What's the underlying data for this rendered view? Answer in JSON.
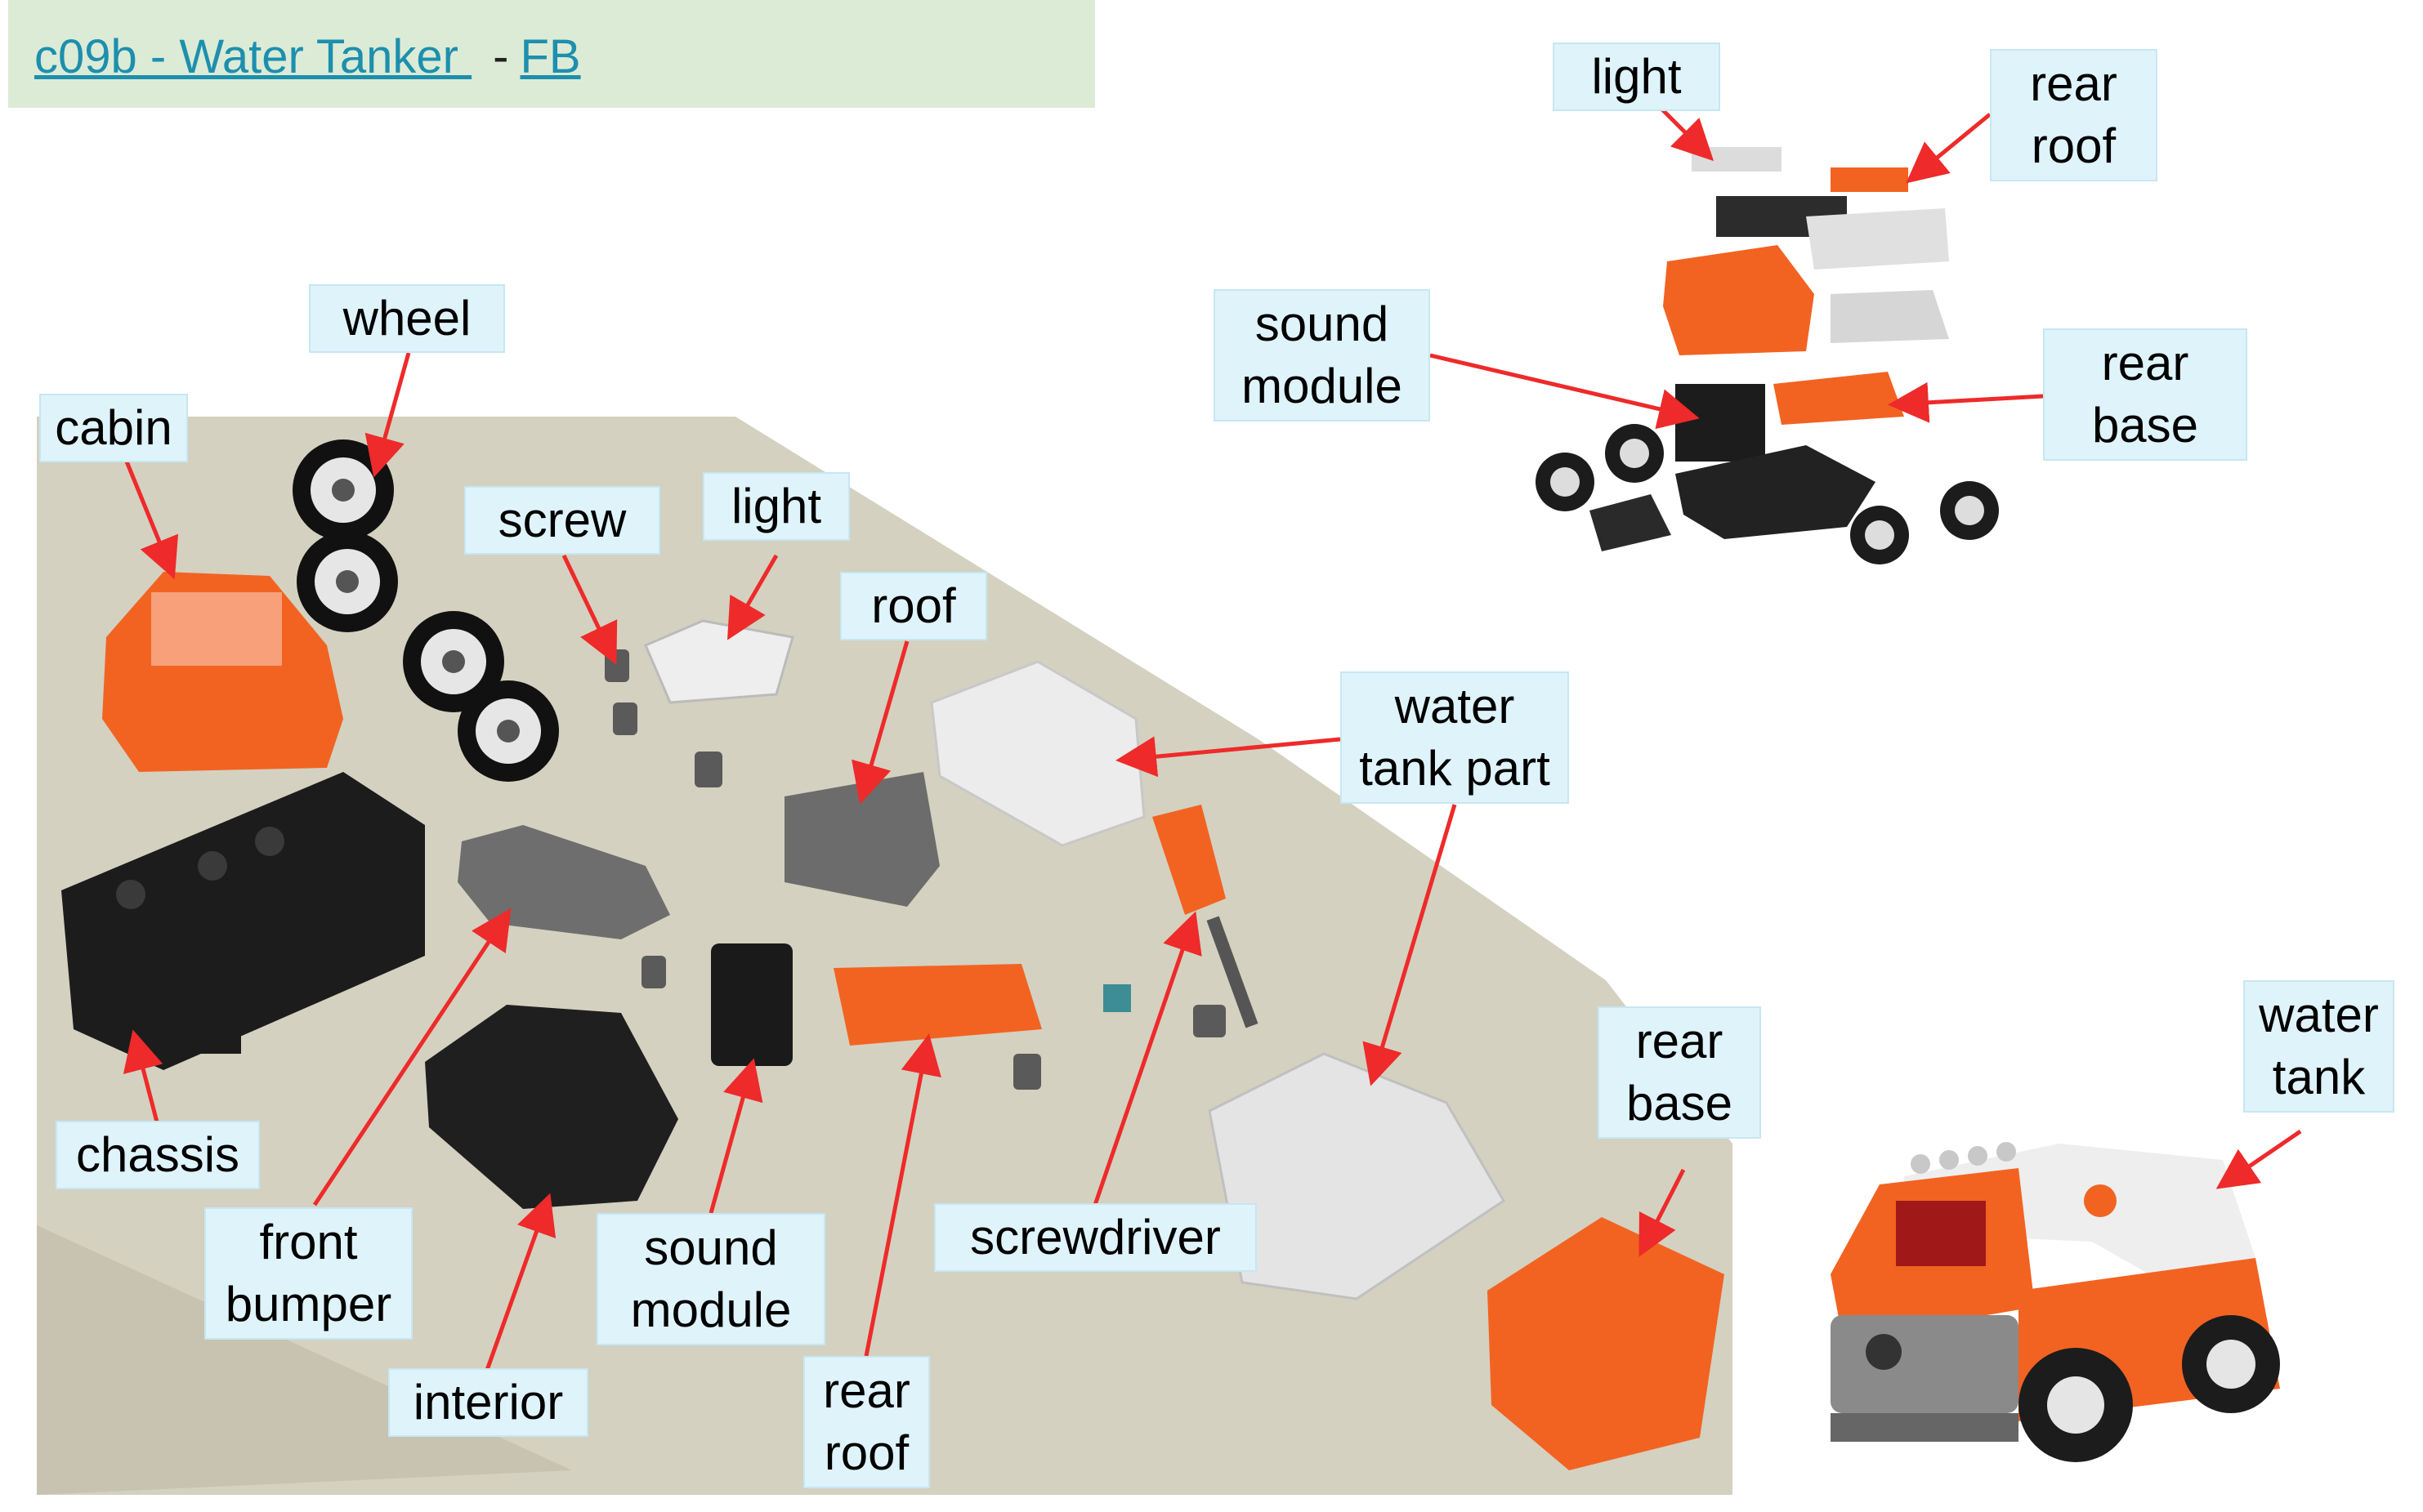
{
  "header": {
    "link_title": "c09b - Water Tanker ",
    "separator": "-",
    "link_fb": "FB"
  },
  "labels": {
    "wheel": "wheel",
    "cabin": "cabin",
    "screw": "screw",
    "light_left": "light",
    "roof": "roof",
    "water_tank_part": "water\ntank part",
    "chassis": "chassis",
    "front_bumper": "front\nbumper",
    "interior": "interior",
    "sound_module_left": "sound\nmodule",
    "rear_roof_left": "rear\nroof",
    "screwdriver": "screwdriver",
    "rear_base_left": "rear\nbase",
    "light_right": "light",
    "rear_roof_right": "rear\nroof",
    "sound_module_right": "sound\nmodule",
    "rear_base_right": "rear\nbase",
    "water_tank": "water\ntank"
  },
  "colors": {
    "arrow": "#ee2a2a",
    "label_fill": "#dff3fb",
    "header_fill": "#dcebd6",
    "link": "#1d8fae",
    "orange_part": "#f26322",
    "black_part": "#1c1c1c",
    "grey_part": "#6e6e6e",
    "white_part": "#e9e9e9"
  }
}
